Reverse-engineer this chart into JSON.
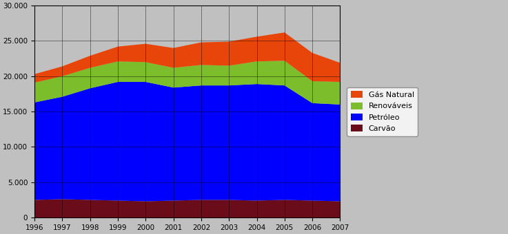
{
  "years": [
    1996,
    1997,
    1998,
    1999,
    2000,
    2001,
    2002,
    2003,
    2004,
    2005,
    2006,
    2007
  ],
  "carvao": [
    2500,
    2600,
    2500,
    2400,
    2300,
    2400,
    2500,
    2500,
    2400,
    2500,
    2400,
    2300
  ],
  "petroleo": [
    13800,
    14500,
    15800,
    16800,
    16900,
    16000,
    16200,
    16200,
    16500,
    16200,
    13800,
    13700
  ],
  "renovaveis": [
    2800,
    2900,
    2900,
    2900,
    2800,
    2800,
    2900,
    2800,
    3200,
    3500,
    3100,
    3200
  ],
  "gas_natural": [
    1200,
    1400,
    1700,
    2100,
    2600,
    2800,
    3200,
    3400,
    3500,
    4000,
    4000,
    2700
  ],
  "colors": {
    "carvao": "#6B0C1A",
    "petroleo": "#0000FF",
    "renovaveis": "#7BBD2A",
    "gas_natural": "#E8450A"
  },
  "ylim": [
    0,
    30000
  ],
  "yticks": [
    0,
    5000,
    10000,
    15000,
    20000,
    25000,
    30000
  ],
  "ytick_labels": [
    "0",
    "5.000",
    "10.000",
    "15.000",
    "20.000",
    "25.000",
    "30.000"
  ],
  "legend_labels": [
    "Gás Natural",
    "Renováveis",
    "Petróleo",
    "Carvão"
  ],
  "background_color": "#C0C0C0",
  "plot_bg_color": "#C0C0C0",
  "figsize": [
    7.37,
    3.4
  ],
  "dpi": 100
}
